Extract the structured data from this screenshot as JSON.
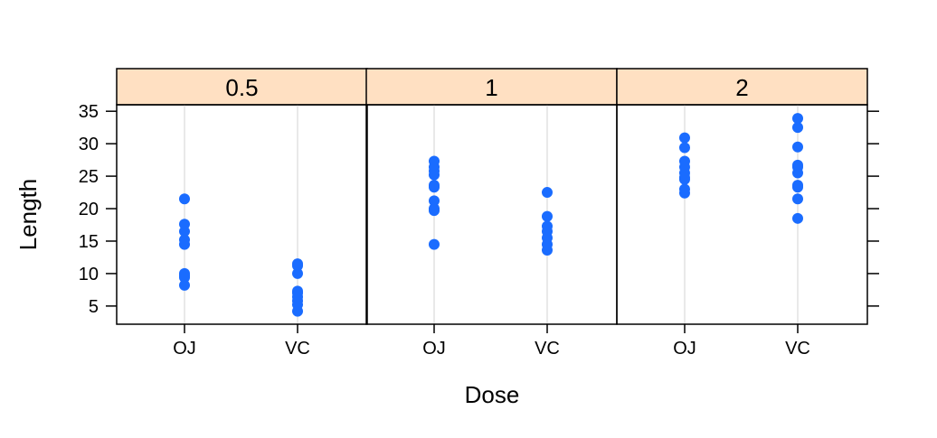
{
  "chart_data": {
    "type": "scatter",
    "xlabel": "Dose",
    "ylabel": "Length",
    "ylim": [
      2.2,
      36.0
    ],
    "yticks": [
      5,
      10,
      15,
      20,
      25,
      30,
      35
    ],
    "categories": [
      "OJ",
      "VC"
    ],
    "grid": "vertical reference lines at categories",
    "colors": {
      "points": "#1a6cff",
      "strip_bg": "#ffe0c2",
      "refline": "#e2e2e2",
      "frame": "#000000"
    },
    "panels": [
      {
        "label": "0.5",
        "series": [
          {
            "category": "OJ",
            "values": [
              8.2,
              9.4,
              9.7,
              10.0,
              14.5,
              15.2,
              16.5,
              17.6,
              21.5
            ]
          },
          {
            "category": "VC",
            "values": [
              4.2,
              5.2,
              5.8,
              6.4,
              7.0,
              7.3,
              10.0,
              11.2,
              11.5
            ]
          }
        ]
      },
      {
        "label": "1",
        "series": [
          {
            "category": "OJ",
            "values": [
              14.5,
              19.7,
              20.0,
              21.2,
              23.3,
              23.6,
              25.2,
              25.8,
              26.4,
              27.3
            ]
          },
          {
            "category": "VC",
            "values": [
              13.6,
              14.5,
              15.5,
              16.5,
              17.3,
              18.8,
              22.5
            ]
          }
        ]
      },
      {
        "label": "2",
        "series": [
          {
            "category": "OJ",
            "values": [
              22.4,
              23.0,
              24.5,
              24.8,
              25.5,
              26.4,
              27.3,
              29.4,
              30.9
            ]
          },
          {
            "category": "VC",
            "values": [
              18.5,
              21.5,
              23.3,
              23.6,
              25.5,
              26.4,
              26.7,
              29.5,
              32.5,
              33.9
            ]
          }
        ]
      }
    ]
  }
}
